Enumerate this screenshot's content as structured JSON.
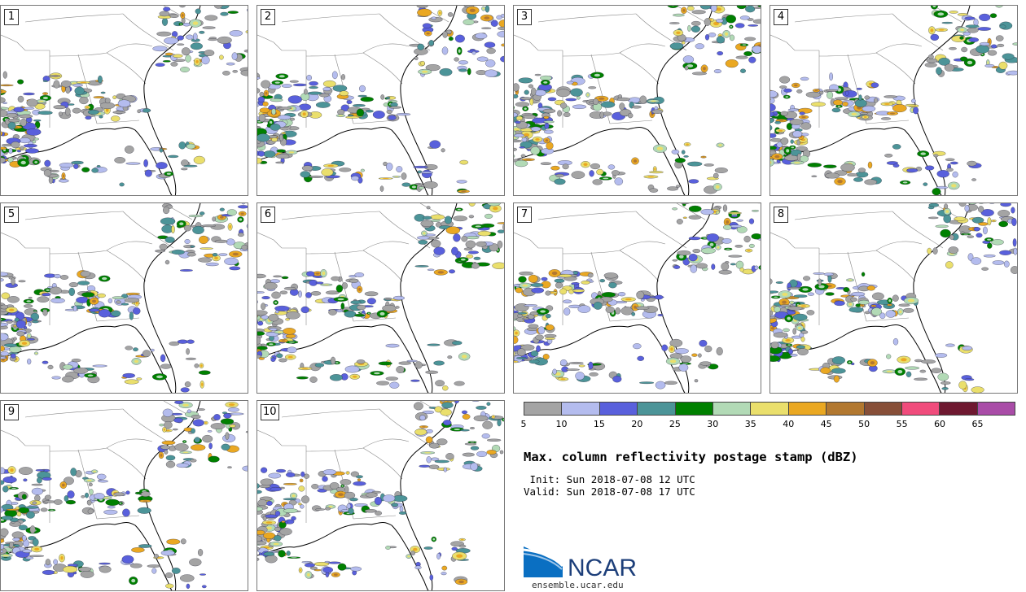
{
  "panels": [
    {
      "label": "1"
    },
    {
      "label": "2"
    },
    {
      "label": "3"
    },
    {
      "label": "4"
    },
    {
      "label": "5"
    },
    {
      "label": "6"
    },
    {
      "label": "7"
    },
    {
      "label": "8"
    },
    {
      "label": "9"
    },
    {
      "label": "10"
    }
  ],
  "colorbar": {
    "colors": [
      "#a4a4a4",
      "#b4bcee",
      "#5960dc",
      "#4c9498",
      "#008000",
      "#b2dab6",
      "#eadf6c",
      "#eaa822",
      "#b27830",
      "#874f38",
      "#f04c7c",
      "#6e1830",
      "#a94ca7"
    ],
    "ticks": [
      "5",
      "10",
      "15",
      "20",
      "25",
      "30",
      "35",
      "40",
      "45",
      "50",
      "55",
      "60",
      "65"
    ]
  },
  "title": "Max. column reflectivity postage stamp (dBZ)",
  "init": " Init: Sun 2018-07-08 12 UTC",
  "valid": "Valid: Sun 2018-07-08 17 UTC",
  "logo": {
    "name": "NCAR",
    "url": "ensemble.ucar.edu",
    "colors": {
      "blue": "#0a6fc2",
      "navy": "#1d3f7a"
    }
  }
}
